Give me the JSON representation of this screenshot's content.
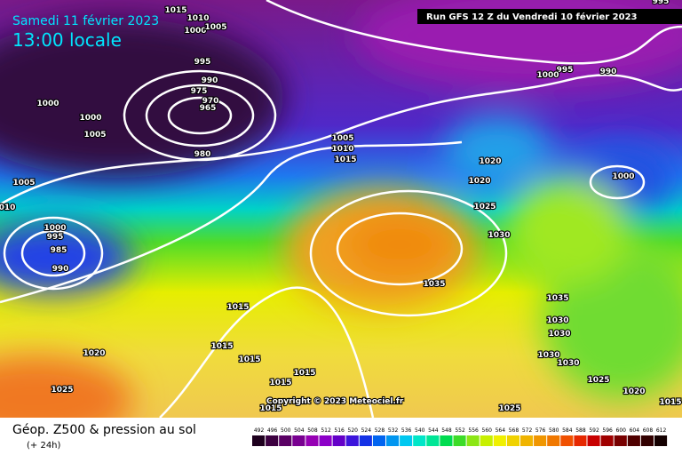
{
  "header": {
    "date": "Samedi 11 février 2023",
    "time": "13:00 locale",
    "run": "Run GFS 12 Z du Vendredi 10 février 2023"
  },
  "footer": {
    "title": "Géop. Z500 & pression au sol",
    "subtitle": "(+ 24h)",
    "copyright": "Copyright © 2023 Meteociel.fr"
  },
  "isobars": [
    1015,
    1010,
    1000,
    1005,
    995,
    990,
    975,
    970,
    965,
    1000,
    1000,
    1005,
    980,
    1005,
    "010",
    1000,
    995,
    985,
    990,
    1005,
    1010,
    1015,
    1020,
    1020,
    1025,
    1030,
    1035,
    1035,
    1030,
    1030,
    1030,
    1030,
    995,
    990,
    1000,
    1000,
    995,
    1015,
    1015,
    1015,
    1015,
    1015,
    1015,
    1020,
    1025,
    1025,
    1020,
    1015,
    1025
  ],
  "legend": {
    "values": [
      492,
      496,
      500,
      504,
      508,
      512,
      516,
      520,
      524,
      528,
      532,
      536,
      540,
      544,
      548,
      552,
      556,
      560,
      564,
      568,
      572,
      576,
      580,
      584,
      588,
      592,
      596,
      600,
      604,
      608,
      612
    ],
    "colors": [
      "#1e001e",
      "#3c0040",
      "#5a0064",
      "#780090",
      "#9600b4",
      "#8c00c8",
      "#6400c8",
      "#3c14dc",
      "#1432e6",
      "#0064f0",
      "#0096f0",
      "#00c8f0",
      "#00e6c8",
      "#00e696",
      "#00dc50",
      "#3cdc28",
      "#8ce614",
      "#c8f000",
      "#f0f000",
      "#f0d200",
      "#f0b400",
      "#f09600",
      "#f07800",
      "#f05000",
      "#e62800",
      "#c80000",
      "#a00000",
      "#780000",
      "#500000",
      "#320000",
      "#140000"
    ]
  }
}
